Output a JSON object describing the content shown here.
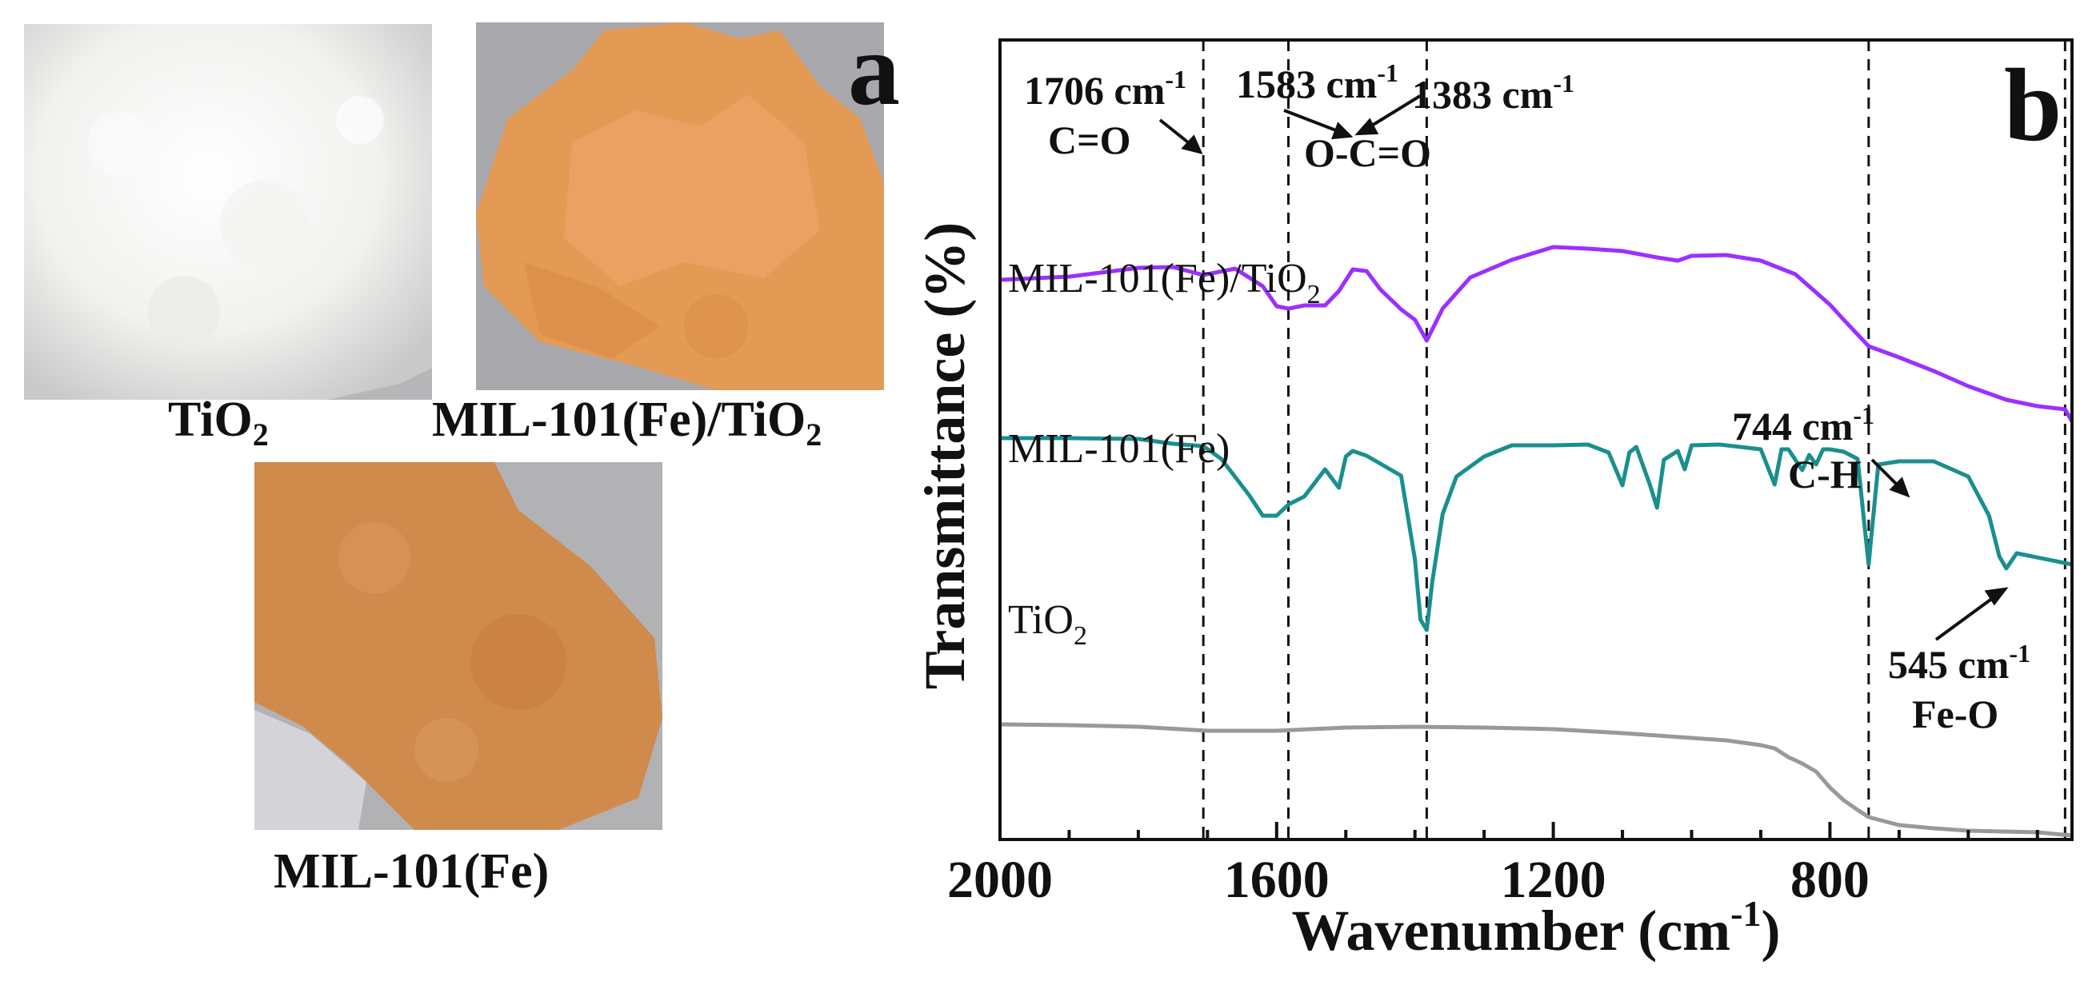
{
  "photos": {
    "tio2": {
      "label_main": "TiO",
      "label_sub": "2",
      "color": "#f2f2f0"
    },
    "composite": {
      "label_main": "MIL-101(Fe)/TiO",
      "label_sub": "2",
      "color": "#e39a55"
    },
    "mil": {
      "label_main": "MIL-101(Fe)",
      "color": "#d08a4c"
    }
  },
  "panel_labels": {
    "a": "a",
    "b": "b"
  },
  "chart_data": {
    "type": "line",
    "title": "",
    "xlabel": "Wavenumber (cm",
    "xlabel_sup": "-1",
    "xlabel_end": ")",
    "ylabel": "Transmittance (%)",
    "xlim": [
      2000,
      450
    ],
    "x_ticks": [
      2000,
      1600,
      1200,
      800
    ],
    "x_tick_labels": [
      "2000",
      "1600",
      "1200",
      "800"
    ],
    "ylim": [
      0,
      100
    ],
    "reference_lines": [
      1706,
      1583,
      1383,
      744,
      460
    ],
    "series": [
      {
        "name": "MIL-101(Fe)/TiO2",
        "label_main": "MIL-101(Fe)/TiO",
        "label_sub": "2",
        "color": "#9b30ff",
        "x": [
          2000,
          1900,
          1800,
          1750,
          1706,
          1660,
          1620,
          1600,
          1583,
          1560,
          1530,
          1510,
          1490,
          1470,
          1450,
          1420,
          1400,
          1383,
          1360,
          1320,
          1260,
          1200,
          1150,
          1100,
          1050,
          1020,
          1000,
          950,
          900,
          850,
          800,
          780,
          744,
          700,
          650,
          600,
          545,
          500,
          460,
          450
        ],
        "y": [
          70,
          70.4,
          71.5,
          71.6,
          70.6,
          71.4,
          69.2,
          66.7,
          66.4,
          66.8,
          66.8,
          68.6,
          71.3,
          71.1,
          68.8,
          66.3,
          65,
          62.4,
          66.4,
          70.3,
          72.5,
          74.1,
          73.9,
          73.6,
          72.8,
          72.4,
          73,
          73.1,
          72.4,
          70.7,
          66.9,
          65,
          61.7,
          60.3,
          58.6,
          56.7,
          55,
          54.2,
          53.8,
          52.3
        ]
      },
      {
        "name": "MIL-101(Fe)",
        "label_main": "MIL-101(Fe)",
        "color": "#1a8f8f",
        "x": [
          2000,
          1900,
          1800,
          1750,
          1706,
          1680,
          1640,
          1620,
          1600,
          1583,
          1560,
          1530,
          1510,
          1500,
          1490,
          1470,
          1450,
          1420,
          1400,
          1392,
          1383,
          1375,
          1360,
          1340,
          1300,
          1260,
          1200,
          1150,
          1120,
          1100,
          1090,
          1080,
          1060,
          1050,
          1040,
          1020,
          1010,
          1000,
          960,
          900,
          880,
          870,
          860,
          840,
          830,
          820,
          810,
          800,
          780,
          760,
          750,
          744,
          738,
          730,
          700,
          650,
          600,
          570,
          555,
          545,
          530,
          450
        ],
        "y": [
          50.2,
          50.2,
          50.1,
          49.5,
          49.2,
          47.6,
          43.1,
          40.5,
          40.5,
          41.9,
          42.9,
          46.3,
          44,
          47.9,
          48.6,
          48,
          47,
          45.5,
          35,
          27.5,
          26.2,
          32.2,
          40.7,
          45.4,
          47.9,
          49.3,
          49.3,
          49.4,
          48.4,
          44.3,
          48.4,
          49.1,
          44.3,
          41.5,
          47.5,
          48.6,
          46.3,
          49.3,
          49.4,
          48.8,
          44.4,
          48.8,
          48.8,
          46.2,
          48.1,
          46.9,
          48.8,
          48.8,
          48.5,
          47.6,
          39.3,
          34.4,
          39.8,
          46.9,
          47.3,
          47.3,
          45.4,
          40.5,
          35.4,
          33.9,
          35.8,
          34.4
        ]
      },
      {
        "name": "TiO2",
        "label_main": "TiO",
        "label_sub": "2",
        "color": "#999999",
        "x": [
          2000,
          1900,
          1800,
          1700,
          1600,
          1500,
          1400,
          1300,
          1200,
          1100,
          1000,
          950,
          900,
          880,
          860,
          840,
          820,
          800,
          780,
          760,
          744,
          700,
          650,
          600,
          500,
          450
        ],
        "y": [
          14.4,
          14.3,
          14.1,
          13.6,
          13.6,
          14,
          14.1,
          14,
          13.8,
          13.3,
          12.7,
          12.4,
          11.8,
          11.4,
          10.3,
          9.5,
          8.5,
          6.5,
          4.9,
          3.7,
          2.8,
          1.8,
          1.4,
          1.1,
          0.9,
          0.5
        ]
      }
    ],
    "annotations": [
      {
        "id": "1706",
        "text": "1706 cm",
        "sup": "-1"
      },
      {
        "id": "c_o",
        "text": "C=O"
      },
      {
        "id": "1583",
        "text": "1583 cm",
        "sup": "-1"
      },
      {
        "id": "1383",
        "text": "1383 cm",
        "sup": "-1"
      },
      {
        "id": "o_c_o",
        "text": "O-C=O"
      },
      {
        "id": "744",
        "text": "744 cm",
        "sup": "-1"
      },
      {
        "id": "c_h",
        "text": "C-H"
      },
      {
        "id": "545",
        "text": "545 cm",
        "sup": "-1"
      },
      {
        "id": "fe_o",
        "text": "Fe-O"
      }
    ]
  }
}
